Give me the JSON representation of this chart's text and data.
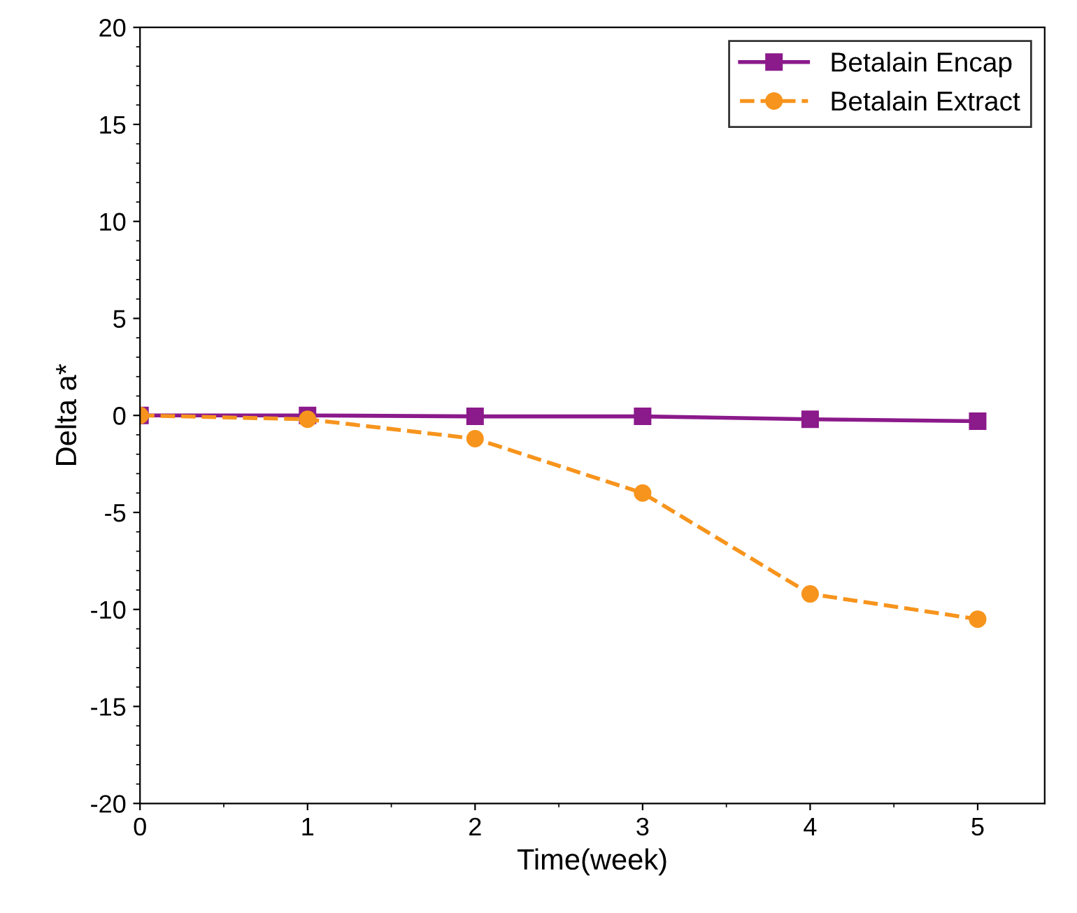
{
  "chart_data": {
    "type": "line",
    "xlabel": "Time(week)",
    "ylabel": "Delta a*",
    "x": [
      0,
      1,
      2,
      3,
      4,
      5
    ],
    "series": [
      {
        "name": "Betalain Encap",
        "color": "#8b1a8b",
        "marker": "square",
        "line_style": "solid",
        "values": [
          0,
          0,
          -0.05,
          -0.05,
          -0.2,
          -0.3
        ]
      },
      {
        "name": "Betalain Extract",
        "color": "#f7941d",
        "marker": "circle",
        "line_style": "dashed",
        "values": [
          0,
          -0.2,
          -1.2,
          -4,
          -9.2,
          -10.5
        ]
      }
    ],
    "xlim": [
      0,
      5.4
    ],
    "xticks": [
      0,
      1,
      2,
      3,
      4,
      5
    ],
    "ylim": [
      -20,
      20
    ],
    "yticks": [
      -20,
      -15,
      -10,
      -5,
      0,
      5,
      10,
      15,
      20
    ],
    "grid": false,
    "legend": "top right"
  }
}
